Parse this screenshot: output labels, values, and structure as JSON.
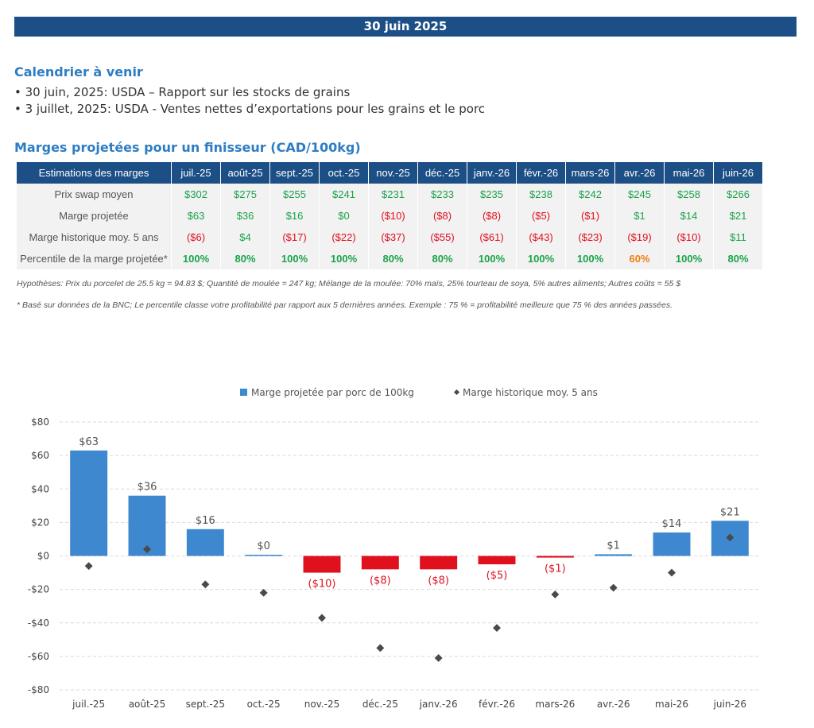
{
  "header": {
    "date": "30 juin 2025"
  },
  "calendar": {
    "title": "Calendrier à venir",
    "items": [
      "• 30 juin, 2025: USDA – Rapport sur les stocks de grains",
      "• 3 juillet, 2025: USDA - Ventes nettes d’exportations pour les grains et le porc"
    ]
  },
  "margins_table": {
    "title": "Marges projetées pour un finisseur (CAD/100kg)",
    "header_label": "Estimations des marges",
    "months": [
      "juil.-25",
      "août-25",
      "sept.-25",
      "oct.-25",
      "nov.-25",
      "déc.-25",
      "janv.-26",
      "févr.-26",
      "mars-26",
      "avr.-26",
      "mai-26",
      "juin-26"
    ],
    "rows": [
      {
        "label": "Prix swap moyen",
        "values": [
          "$302",
          "$275",
          "$255",
          "$241",
          "$231",
          "$233",
          "$235",
          "$238",
          "$242",
          "$245",
          "$258",
          "$266"
        ],
        "colors": [
          "pos",
          "pos",
          "pos",
          "pos",
          "pos",
          "pos",
          "pos",
          "pos",
          "pos",
          "pos",
          "pos",
          "pos"
        ]
      },
      {
        "label": "Marge projetée",
        "values": [
          "$63",
          "$36",
          "$16",
          "$0",
          "($10)",
          "($8)",
          "($8)",
          "($5)",
          "($1)",
          "$1",
          "$14",
          "$21"
        ],
        "colors": [
          "pos",
          "pos",
          "pos",
          "pos",
          "neg",
          "neg",
          "neg",
          "neg",
          "neg",
          "pos",
          "pos",
          "pos"
        ]
      },
      {
        "label": "Marge historique moy. 5 ans",
        "values": [
          "($6)",
          "$4",
          "($17)",
          "($22)",
          "($37)",
          "($55)",
          "($61)",
          "($43)",
          "($23)",
          "($19)",
          "($10)",
          "$11"
        ],
        "colors": [
          "neg",
          "pos",
          "neg",
          "neg",
          "neg",
          "neg",
          "neg",
          "neg",
          "neg",
          "neg",
          "neg",
          "pos"
        ]
      },
      {
        "label": "Percentile de la marge projetée*",
        "values": [
          "100%",
          "80%",
          "100%",
          "100%",
          "80%",
          "80%",
          "100%",
          "100%",
          "100%",
          "60%",
          "100%",
          "80%"
        ],
        "colors": [
          "pos",
          "pos",
          "pos",
          "pos",
          "pos",
          "pos",
          "pos",
          "pos",
          "pos",
          "orange",
          "pos",
          "pos"
        ]
      }
    ],
    "colors": {
      "positive": "#1aa34a",
      "negative": "#e0101e",
      "warning": "#f07d10",
      "header_bg": "#1c4f86"
    }
  },
  "notes": {
    "assumptions": "Hypothèses: Prix du porcelet de 25.5 kg = 94.83 $; Quantité de moulée = 247 kg; Mélange de la moulée: 70% maïs, 25% tourteau de soya, 5% autres aliments; Autres coûts = 55 $",
    "footnote": "* Basé sur données de la BNC; Le percentile classe votre profitabilité par rapport aux 5 dernières années. Exemple : 75 % = profitabilité meilleure que 75 % des années passées."
  },
  "chart_data": {
    "type": "bar",
    "categories": [
      "juil.-25",
      "août-25",
      "sept.-25",
      "oct.-25",
      "nov.-25",
      "déc.-25",
      "janv.-26",
      "févr.-26",
      "mars-26",
      "avr.-26",
      "mai-26",
      "juin-26"
    ],
    "series": [
      {
        "name": "Marge projetée par porc de 100kg",
        "type": "bar",
        "values": [
          63,
          36,
          16,
          0,
          -10,
          -8,
          -8,
          -5,
          -1,
          1,
          14,
          21
        ],
        "labels": [
          "$63",
          "$36",
          "$16",
          "$0",
          "($10)",
          "($8)",
          "($8)",
          "($5)",
          "($1)",
          "$1",
          "$14",
          "$21"
        ],
        "color_positive": "#3e88cf",
        "color_negative": "#e0101e"
      },
      {
        "name": "Marge historique moy. 5 ans",
        "type": "scatter",
        "values": [
          -6,
          4,
          -17,
          -22,
          -37,
          -55,
          -61,
          -43,
          -23,
          -19,
          -10,
          11
        ],
        "color": "#4a4a4a"
      }
    ],
    "yticks": [
      "$80",
      "$60",
      "$40",
      "$20",
      "$0",
      "-$20",
      "-$40",
      "-$60",
      "-$80"
    ],
    "ylim": [
      -80,
      80
    ],
    "grid": true,
    "legend_position": "top"
  }
}
